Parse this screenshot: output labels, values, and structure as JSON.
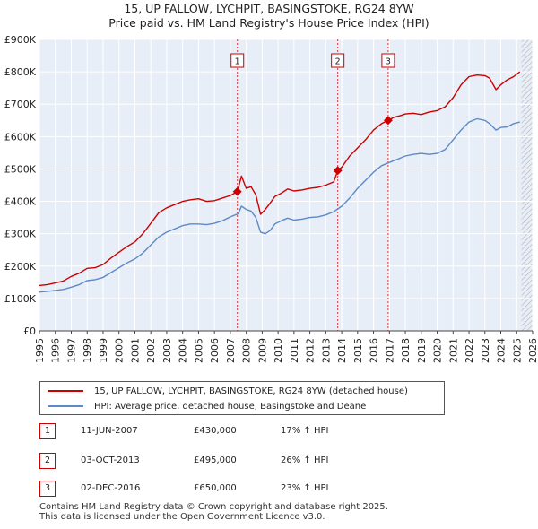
{
  "header": {
    "title_line1": "15, UP FALLOW, LYCHPIT, BASINGSTOKE, RG24 8YW",
    "title_line2": "Price paid vs. HM Land Registry's House Price Index (HPI)"
  },
  "chart_data": {
    "type": "line",
    "title": "15, UP FALLOW, LYCHPIT, BASINGSTOKE, RG24 8YW",
    "subtitle": "Price paid vs. HM Land Registry's House Price Index (HPI)",
    "xlabel": "",
    "ylabel": "",
    "xlim": [
      1995,
      2026
    ],
    "ylim": [
      0,
      900000
    ],
    "x_ticks": [
      1995,
      1996,
      1997,
      1998,
      1999,
      2000,
      2001,
      2002,
      2003,
      2004,
      2005,
      2006,
      2007,
      2008,
      2009,
      2010,
      2011,
      2012,
      2013,
      2014,
      2015,
      2016,
      2017,
      2018,
      2019,
      2020,
      2021,
      2022,
      2023,
      2024,
      2025,
      2026
    ],
    "x_tick_labels": [
      "1995",
      "1996",
      "1997",
      "1998",
      "1999",
      "2000",
      "2001",
      "2002",
      "2003",
      "2004",
      "2005",
      "2006",
      "2007",
      "2008",
      "2009",
      "2010",
      "2011",
      "2012",
      "2013",
      "2014",
      "2015",
      "2016",
      "2017",
      "2018",
      "2019",
      "2020",
      "2021",
      "2022",
      "2023",
      "2024",
      "2025",
      "2026"
    ],
    "y_ticks": [
      0,
      100000,
      200000,
      300000,
      400000,
      500000,
      600000,
      700000,
      800000,
      900000
    ],
    "y_tick_labels": [
      "£0",
      "£100K",
      "£200K",
      "£300K",
      "£400K",
      "£500K",
      "£600K",
      "£700K",
      "£800K",
      "£900K"
    ],
    "grid": true,
    "data_end_year": 2025.3,
    "series": [
      {
        "name": "15, UP FALLOW, LYCHPIT, BASINGSTOKE, RG24 8YW (detached house)",
        "color": "#cc0000",
        "x": [
          1995,
          1995.5,
          1996,
          1996.5,
          1997,
          1997.5,
          1998,
          1998.5,
          1999,
          1999.5,
          2000,
          2000.5,
          2001,
          2001.5,
          2002,
          2002.5,
          2003,
          2003.5,
          2004,
          2004.5,
          2005,
          2005.5,
          2006,
          2006.5,
          2007,
          2007.44,
          2007.7,
          2008,
          2008.3,
          2008.6,
          2008.9,
          2009.2,
          2009.5,
          2009.8,
          2010.2,
          2010.6,
          2011,
          2011.5,
          2012,
          2012.5,
          2013,
          2013.5,
          2013.75,
          2014,
          2014.5,
          2015,
          2015.5,
          2016,
          2016.5,
          2016.92,
          2017.3,
          2017.7,
          2018,
          2018.5,
          2019,
          2019.5,
          2020,
          2020.5,
          2021,
          2021.5,
          2022,
          2022.5,
          2023,
          2023.3,
          2023.7,
          2024,
          2024.4,
          2024.8,
          2025.2
        ],
        "values": [
          140000,
          143000,
          148000,
          154000,
          168000,
          178000,
          193000,
          195000,
          205000,
          225000,
          243000,
          260000,
          275000,
          300000,
          332000,
          365000,
          380000,
          390000,
          400000,
          405000,
          408000,
          400000,
          402000,
          410000,
          418000,
          430000,
          478000,
          440000,
          445000,
          420000,
          360000,
          375000,
          395000,
          415000,
          425000,
          438000,
          432000,
          435000,
          440000,
          443000,
          450000,
          460000,
          495000,
          505000,
          540000,
          565000,
          590000,
          620000,
          640000,
          650000,
          660000,
          665000,
          670000,
          672000,
          668000,
          676000,
          680000,
          692000,
          720000,
          760000,
          785000,
          790000,
          788000,
          780000,
          745000,
          760000,
          775000,
          785000,
          800000
        ]
      },
      {
        "name": "HPI: Average price, detached house, Basingstoke and Deane",
        "color": "#5b8ac6",
        "x": [
          1995,
          1995.5,
          1996,
          1996.5,
          1997,
          1997.5,
          1998,
          1998.5,
          1999,
          1999.5,
          2000,
          2000.5,
          2001,
          2001.5,
          2002,
          2002.5,
          2003,
          2003.5,
          2004,
          2004.5,
          2005,
          2005.5,
          2006,
          2006.5,
          2007,
          2007.5,
          2007.7,
          2008,
          2008.3,
          2008.6,
          2008.9,
          2009.2,
          2009.5,
          2009.8,
          2010.2,
          2010.6,
          2011,
          2011.5,
          2012,
          2012.5,
          2013,
          2013.5,
          2014,
          2014.5,
          2015,
          2015.5,
          2016,
          2016.5,
          2017,
          2017.5,
          2018,
          2018.5,
          2019,
          2019.5,
          2020,
          2020.5,
          2021,
          2021.5,
          2022,
          2022.5,
          2023,
          2023.3,
          2023.7,
          2024,
          2024.4,
          2024.8,
          2025.2
        ],
        "values": [
          120000,
          122000,
          125000,
          128000,
          135000,
          143000,
          155000,
          158000,
          165000,
          180000,
          195000,
          210000,
          222000,
          240000,
          265000,
          290000,
          305000,
          315000,
          325000,
          330000,
          330000,
          328000,
          332000,
          340000,
          352000,
          362000,
          385000,
          375000,
          370000,
          350000,
          305000,
          300000,
          310000,
          330000,
          340000,
          348000,
          342000,
          345000,
          350000,
          352000,
          358000,
          368000,
          385000,
          410000,
          440000,
          465000,
          490000,
          510000,
          520000,
          530000,
          540000,
          545000,
          548000,
          545000,
          548000,
          560000,
          590000,
          620000,
          645000,
          655000,
          650000,
          640000,
          620000,
          628000,
          630000,
          640000,
          645000
        ]
      }
    ],
    "sales": [
      {
        "label": "1",
        "x": 2007.44,
        "value": 430000
      },
      {
        "label": "2",
        "x": 2013.75,
        "value": 495000
      },
      {
        "label": "3",
        "x": 2016.92,
        "value": 650000
      }
    ]
  },
  "legend": {
    "property_label": "15, UP FALLOW, LYCHPIT, BASINGSTOKE, RG24 8YW (detached house)",
    "hpi_label": "HPI: Average price, detached house, Basingstoke and Deane",
    "property_color": "#cc0000",
    "hpi_color": "#5b8ac6"
  },
  "sales_table": [
    {
      "num": "1",
      "date": "11-JUN-2007",
      "price": "£430,000",
      "hpi": "17% ↑ HPI"
    },
    {
      "num": "2",
      "date": "03-OCT-2013",
      "price": "£495,000",
      "hpi": "26% ↑ HPI"
    },
    {
      "num": "3",
      "date": "02-DEC-2016",
      "price": "£650,000",
      "hpi": "23% ↑ HPI"
    }
  ],
  "footer": {
    "line1": "Contains HM Land Registry data © Crown copyright and database right 2025.",
    "line2": "This data is licensed under the Open Government Licence v3.0."
  }
}
